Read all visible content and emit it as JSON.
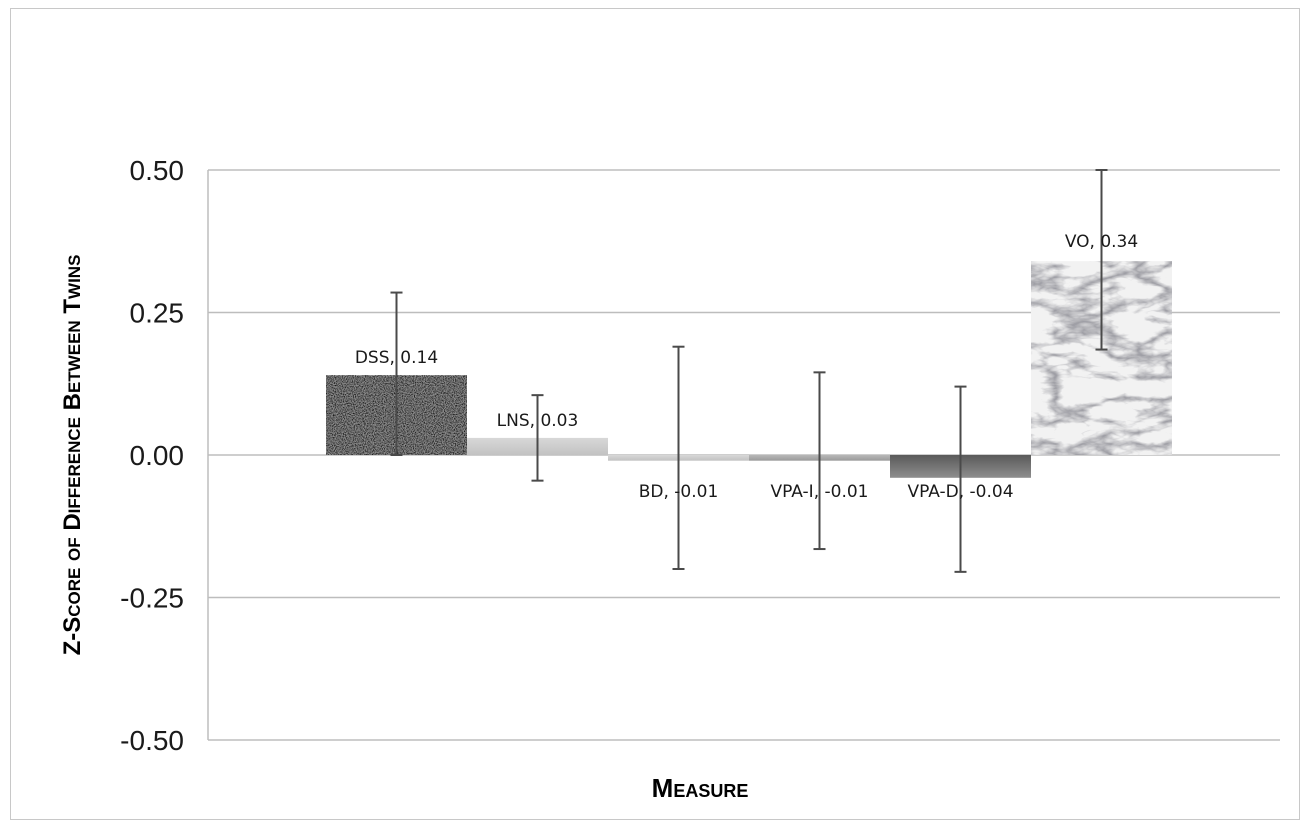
{
  "chart_data": {
    "type": "bar",
    "xlabel": "Measure",
    "ylabel": "Z-Score of Difference Between Twins",
    "ylim": [
      -0.5,
      0.5
    ],
    "yticks": [
      "0.50",
      "0.25",
      "0.00",
      "-0.25",
      "-0.50"
    ],
    "grid": true,
    "categories": [
      "DSS",
      "LNS",
      "BD",
      "VPA-I",
      "VPA-D",
      "VO"
    ],
    "values": [
      0.14,
      0.03,
      -0.01,
      -0.01,
      -0.04,
      0.34
    ],
    "data_labels": [
      "DSS, 0.14",
      "LNS, 0.03",
      "BD, -0.01",
      "VPA-I, -0.01",
      "VPA-D, -0.04",
      "VO, 0.34"
    ],
    "error_low": [
      0.0,
      -0.045,
      -0.2,
      -0.165,
      -0.205,
      0.185
    ],
    "error_high": [
      0.285,
      0.105,
      0.19,
      0.145,
      0.12,
      0.5
    ],
    "bar_styles": [
      "granite",
      "light-gray",
      "light-gray",
      "gray",
      "dark-gray",
      "marble"
    ]
  }
}
